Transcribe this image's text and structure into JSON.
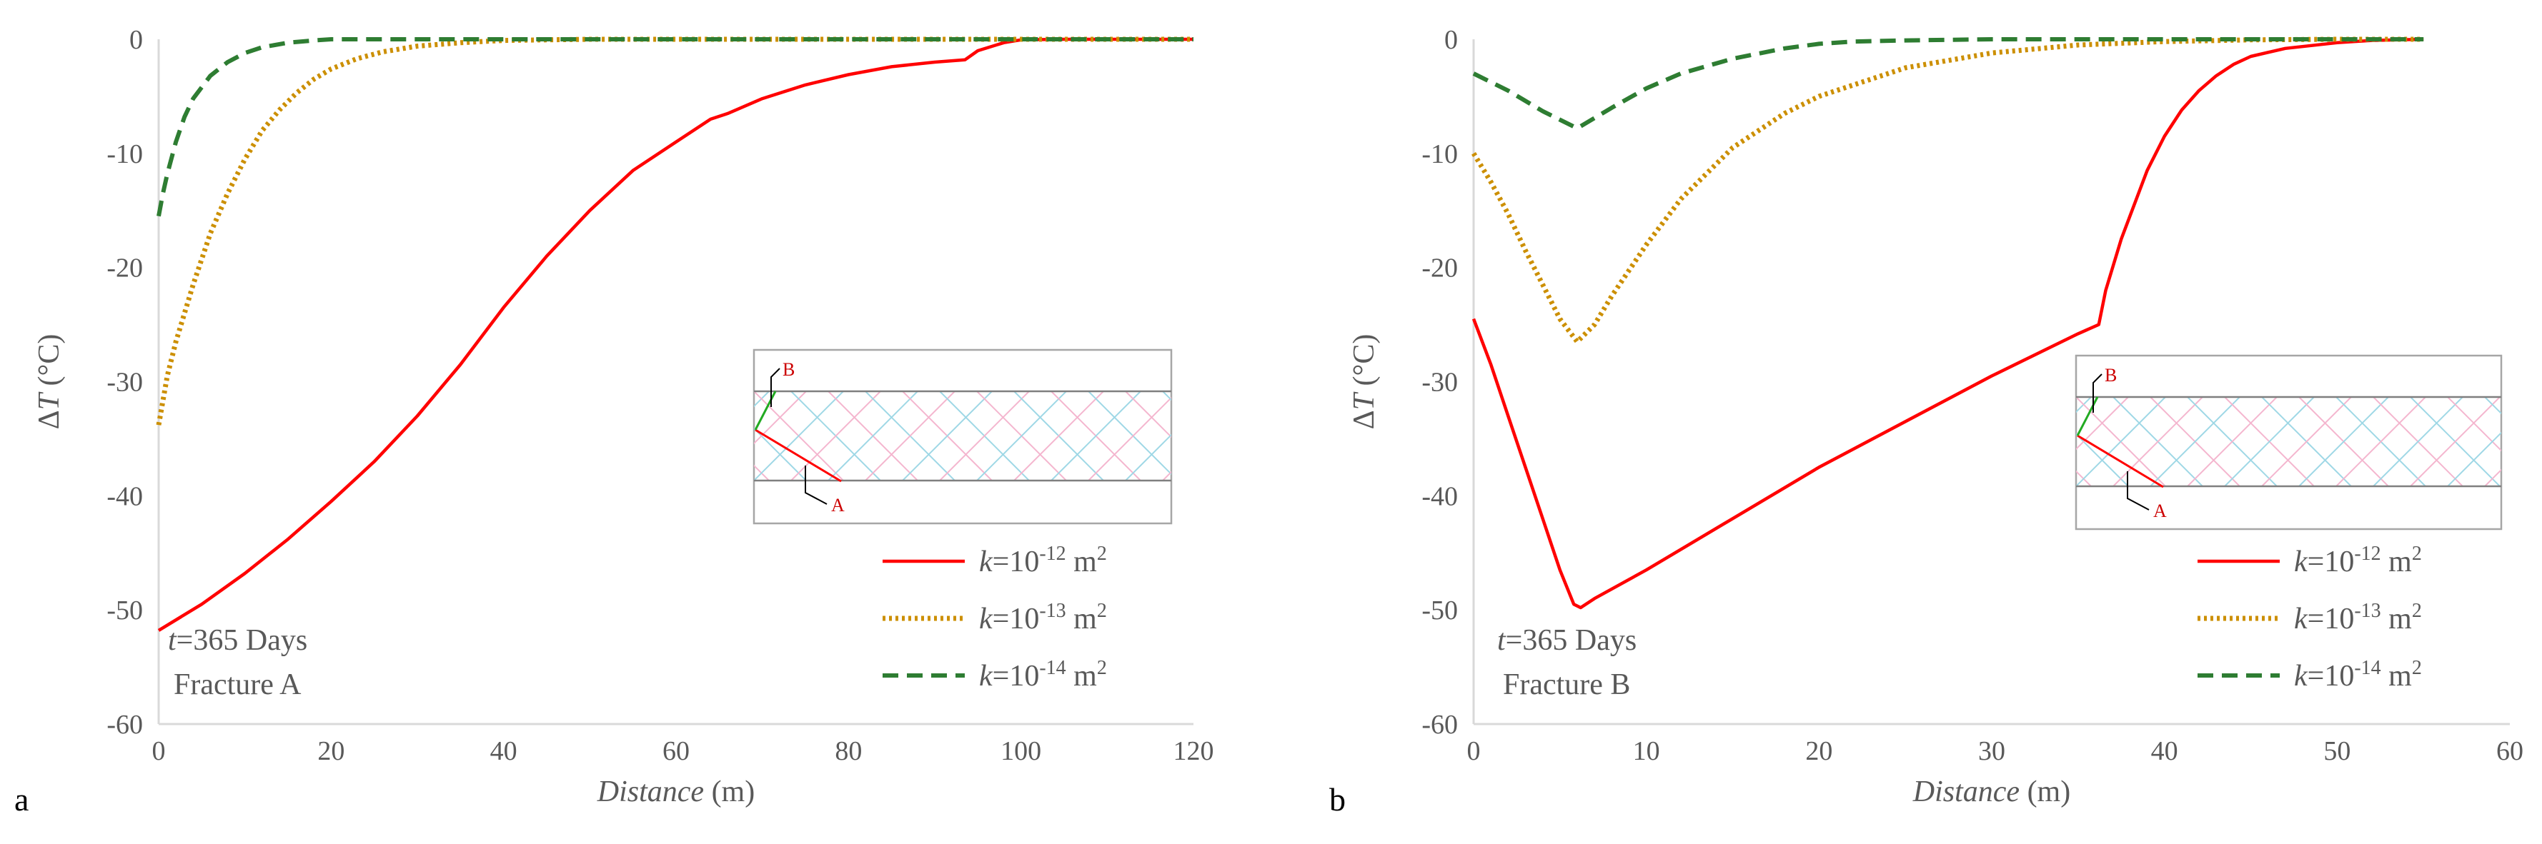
{
  "chart_data": [
    {
      "type": "line",
      "panel": "a",
      "xlabel": "Distance (m)",
      "xlabel_italic": "Distance",
      "xlabel_unit": " (m)",
      "ylabel": "ΔT (°C)",
      "ylabel_delta": "Δ",
      "ylabel_var": "T",
      "ylabel_unit": " (°C)",
      "xlim": [
        0,
        120
      ],
      "ylim": [
        -60,
        0
      ],
      "xticks": [
        0,
        20,
        40,
        60,
        80,
        100,
        120
      ],
      "yticks": [
        0,
        -10,
        -20,
        -30,
        -40,
        -50,
        -60
      ],
      "xtick_labels": [
        "0",
        "20",
        "40",
        "60",
        "80",
        "100",
        "120"
      ],
      "ytick_labels": [
        "0",
        "-10",
        "-20",
        "-30",
        "-40",
        "-50",
        "-60"
      ],
      "grid": false,
      "legend_position": "bottom-right",
      "annotation_line1_var": "t",
      "annotation_line1_rest": "=365 Days",
      "annotation_line2": "Fracture A",
      "inset": {
        "label_top": "B",
        "label_bottom": "A"
      },
      "series": [
        {
          "name": "k=10-12 m2",
          "k_prefix": "k",
          "k_base": "=10",
          "k_exp": "-12",
          "k_unit": " m",
          "k_unit_exp": "2",
          "color": "#ff0000",
          "style": "solid",
          "x": [
            0,
            5,
            10,
            15,
            20,
            25,
            30,
            35,
            40,
            45,
            50,
            55,
            60,
            64,
            66,
            70,
            75,
            80,
            85,
            90,
            93.5,
            95,
            98,
            100,
            105,
            110,
            115,
            120
          ],
          "y": [
            -51.8,
            -49.5,
            -46.8,
            -43.8,
            -40.5,
            -37.0,
            -33.0,
            -28.5,
            -23.5,
            -19.0,
            -15.0,
            -11.5,
            -9.0,
            -7.0,
            -6.5,
            -5.2,
            -4.0,
            -3.1,
            -2.4,
            -2.0,
            -1.8,
            -1.0,
            -0.3,
            -0.05,
            0,
            0,
            0,
            0
          ]
        },
        {
          "name": "k=10-13 m2",
          "k_prefix": "k",
          "k_base": "=10",
          "k_exp": "-13",
          "k_unit": " m",
          "k_unit_exp": "2",
          "color": "#cc8f00",
          "style": "dotted",
          "x": [
            0,
            1,
            2,
            4,
            6,
            8,
            10,
            12,
            14,
            16,
            18,
            20,
            23,
            26,
            30,
            35,
            40,
            45,
            50,
            60,
            70,
            80,
            100,
            120
          ],
          "y": [
            -33.8,
            -29.5,
            -26.5,
            -21.5,
            -17.0,
            -13.5,
            -10.5,
            -8.0,
            -6.2,
            -4.7,
            -3.5,
            -2.6,
            -1.7,
            -1.1,
            -0.6,
            -0.3,
            -0.1,
            -0.05,
            0,
            0,
            0,
            0,
            0,
            0
          ]
        },
        {
          "name": "k=10-14 m2",
          "k_prefix": "k",
          "k_base": "=10",
          "k_exp": "-14",
          "k_unit": " m",
          "k_unit_exp": "2",
          "color": "#2e7d32",
          "style": "dashed",
          "x": [
            0,
            0.5,
            1,
            2,
            3,
            4,
            6,
            8,
            10,
            12,
            15,
            18,
            20,
            30,
            40,
            60,
            80,
            100,
            120
          ],
          "y": [
            -15.5,
            -13.5,
            -11.8,
            -9.0,
            -6.8,
            -5.2,
            -3.2,
            -2.0,
            -1.2,
            -0.7,
            -0.3,
            -0.1,
            0,
            0,
            0,
            0,
            0,
            0,
            0
          ]
        }
      ]
    },
    {
      "type": "line",
      "panel": "b",
      "xlabel": "Distance (m)",
      "xlabel_italic": "Distance",
      "xlabel_unit": " (m)",
      "ylabel": "ΔT (°C)",
      "ylabel_delta": "Δ",
      "ylabel_var": "T",
      "ylabel_unit": " (°C)",
      "xlim": [
        0,
        60
      ],
      "ylim": [
        -60,
        0
      ],
      "xticks": [
        0,
        10,
        20,
        30,
        40,
        50,
        60
      ],
      "yticks": [
        0,
        -10,
        -20,
        -30,
        -40,
        -50,
        -60
      ],
      "xtick_labels": [
        "0",
        "10",
        "20",
        "30",
        "40",
        "50",
        "60"
      ],
      "ytick_labels": [
        "0",
        "-10",
        "-20",
        "-30",
        "-40",
        "-50",
        "-60"
      ],
      "grid": false,
      "legend_position": "bottom-right",
      "annotation_line1_var": "t",
      "annotation_line1_rest": "=365 Days",
      "annotation_line2": "Fracture B",
      "inset": {
        "label_top": "B",
        "label_bottom": "A"
      },
      "series": [
        {
          "name": "k=10-12 m2",
          "k_prefix": "k",
          "k_base": "=10",
          "k_exp": "-12",
          "k_unit": " m",
          "k_unit_exp": "2",
          "color": "#ff0000",
          "style": "solid",
          "x": [
            0,
            1,
            2,
            3,
            4,
            5,
            5.8,
            6.2,
            7,
            10,
            15,
            20,
            25,
            30,
            35,
            36.2,
            36.6,
            37.5,
            39,
            40,
            41,
            42,
            43,
            44,
            45,
            47,
            50,
            52,
            55
          ],
          "y": [
            -24.5,
            -28.5,
            -33.0,
            -37.5,
            -42.0,
            -46.5,
            -49.5,
            -49.8,
            -49.0,
            -46.5,
            -42.0,
            -37.5,
            -33.5,
            -29.5,
            -25.8,
            -25.0,
            -22.0,
            -17.5,
            -11.5,
            -8.5,
            -6.2,
            -4.5,
            -3.2,
            -2.2,
            -1.5,
            -0.8,
            -0.3,
            -0.1,
            0
          ]
        },
        {
          "name": "k=10-13 m2",
          "k_prefix": "k",
          "k_base": "=10",
          "k_exp": "-13",
          "k_unit": " m",
          "k_unit_exp": "2",
          "color": "#cc8f00",
          "style": "dotted",
          "x": [
            0,
            1,
            2,
            3,
            4,
            5,
            6,
            7,
            8,
            10,
            12,
            15,
            18,
            20,
            25,
            30,
            35,
            40,
            45,
            50,
            55
          ],
          "y": [
            -10.0,
            -12.5,
            -15.3,
            -18.5,
            -21.5,
            -24.5,
            -26.5,
            -25.0,
            -22.5,
            -18.0,
            -14.0,
            -9.5,
            -6.5,
            -5.0,
            -2.5,
            -1.2,
            -0.5,
            -0.2,
            -0.05,
            0,
            0
          ]
        },
        {
          "name": "k=10-14 m2",
          "k_prefix": "k",
          "k_base": "=10",
          "k_exp": "-14",
          "k_unit": " m",
          "k_unit_exp": "2",
          "color": "#2e7d32",
          "style": "dashed",
          "x": [
            0,
            2,
            4,
            6,
            8,
            10,
            12,
            15,
            18,
            20,
            22,
            25,
            30,
            35,
            40,
            45,
            50,
            55
          ],
          "y": [
            -3.0,
            -4.5,
            -6.3,
            -7.8,
            -6.0,
            -4.3,
            -3.0,
            -1.7,
            -0.8,
            -0.4,
            -0.2,
            -0.1,
            0,
            0,
            0,
            0,
            0,
            0
          ]
        }
      ]
    }
  ]
}
